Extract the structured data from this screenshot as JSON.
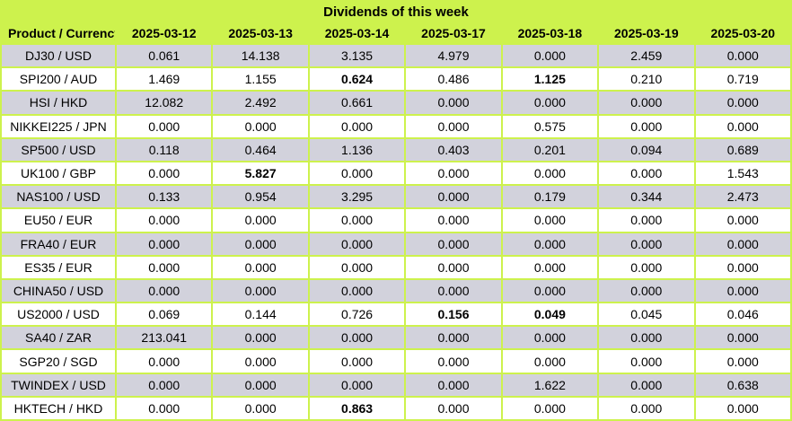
{
  "title": "Dividends of this week",
  "colors": {
    "accent_green": "#CDF24D",
    "row_gray": "#D2D2DC",
    "row_white": "#FFFFFF",
    "text": "#000000"
  },
  "chart_data": {
    "type": "table",
    "title": "Dividends of this week",
    "categories": [
      "2025-03-12",
      "2025-03-13",
      "2025-03-14",
      "2025-03-17",
      "2025-03-18",
      "2025-03-19",
      "2025-03-20"
    ],
    "series": [
      {
        "name": "DJ30 / USD",
        "values": [
          0.061,
          14.138,
          3.135,
          4.979,
          0.0,
          2.459,
          0.0
        ]
      },
      {
        "name": "SPI200 / AUD",
        "values": [
          1.469,
          1.155,
          0.624,
          0.486,
          1.125,
          0.21,
          0.719
        ]
      },
      {
        "name": "HSI / HKD",
        "values": [
          12.082,
          2.492,
          0.661,
          0.0,
          0.0,
          0.0,
          0.0
        ]
      },
      {
        "name": "NIKKEI225 / JPN",
        "values": [
          0.0,
          0.0,
          0.0,
          0.0,
          0.575,
          0.0,
          0.0
        ]
      },
      {
        "name": "SP500 / USD",
        "values": [
          0.118,
          0.464,
          1.136,
          0.403,
          0.201,
          0.094,
          0.689
        ]
      },
      {
        "name": "UK100 / GBP",
        "values": [
          0.0,
          5.827,
          0.0,
          0.0,
          0.0,
          0.0,
          1.543
        ]
      },
      {
        "name": "NAS100 / USD",
        "values": [
          0.133,
          0.954,
          3.295,
          0.0,
          0.179,
          0.344,
          2.473
        ]
      },
      {
        "name": "EU50 / EUR",
        "values": [
          0.0,
          0.0,
          0.0,
          0.0,
          0.0,
          0.0,
          0.0
        ]
      },
      {
        "name": "FRA40 / EUR",
        "values": [
          0.0,
          0.0,
          0.0,
          0.0,
          0.0,
          0.0,
          0.0
        ]
      },
      {
        "name": "ES35 / EUR",
        "values": [
          0.0,
          0.0,
          0.0,
          0.0,
          0.0,
          0.0,
          0.0
        ]
      },
      {
        "name": "CHINA50 / USD",
        "values": [
          0.0,
          0.0,
          0.0,
          0.0,
          0.0,
          0.0,
          0.0
        ]
      },
      {
        "name": "US2000 / USD",
        "values": [
          0.069,
          0.144,
          0.726,
          0.156,
          0.049,
          0.045,
          0.046
        ]
      },
      {
        "name": "SA40 / ZAR",
        "values": [
          213.041,
          0.0,
          0.0,
          0.0,
          0.0,
          0.0,
          0.0
        ]
      },
      {
        "name": "SGP20 / SGD",
        "values": [
          0.0,
          0.0,
          0.0,
          0.0,
          0.0,
          0.0,
          0.0
        ]
      },
      {
        "name": "TWINDEX / USD",
        "values": [
          0.0,
          0.0,
          0.0,
          0.0,
          1.622,
          0.0,
          0.638
        ]
      },
      {
        "name": "HKTECH / HKD",
        "values": [
          0.0,
          0.0,
          0.863,
          0.0,
          0.0,
          0.0,
          0.0
        ]
      }
    ]
  },
  "table": {
    "product_header": "Product / Currency",
    "date_headers": [
      "2025-03-12",
      "2025-03-13",
      "2025-03-14",
      "2025-03-17",
      "2025-03-18",
      "2025-03-19",
      "2025-03-20"
    ],
    "rows": [
      {
        "product": "DJ30 / USD",
        "values": [
          "0.061",
          "14.138",
          "3.135",
          "4.979",
          "0.000",
          "2.459",
          "0.000"
        ],
        "bold": []
      },
      {
        "product": "SPI200 / AUD",
        "values": [
          "1.469",
          "1.155",
          "0.624",
          "0.486",
          "1.125",
          "0.210",
          "0.719"
        ],
        "bold": [
          2,
          4
        ]
      },
      {
        "product": "HSI / HKD",
        "values": [
          "12.082",
          "2.492",
          "0.661",
          "0.000",
          "0.000",
          "0.000",
          "0.000"
        ],
        "bold": []
      },
      {
        "product": "NIKKEI225 / JPN",
        "values": [
          "0.000",
          "0.000",
          "0.000",
          "0.000",
          "0.575",
          "0.000",
          "0.000"
        ],
        "bold": []
      },
      {
        "product": "SP500 / USD",
        "values": [
          "0.118",
          "0.464",
          "1.136",
          "0.403",
          "0.201",
          "0.094",
          "0.689"
        ],
        "bold": []
      },
      {
        "product": "UK100 / GBP",
        "values": [
          "0.000",
          "5.827",
          "0.000",
          "0.000",
          "0.000",
          "0.000",
          "1.543"
        ],
        "bold": [
          1
        ]
      },
      {
        "product": "NAS100 / USD",
        "values": [
          "0.133",
          "0.954",
          "3.295",
          "0.000",
          "0.179",
          "0.344",
          "2.473"
        ],
        "bold": []
      },
      {
        "product": "EU50 / EUR",
        "values": [
          "0.000",
          "0.000",
          "0.000",
          "0.000",
          "0.000",
          "0.000",
          "0.000"
        ],
        "bold": []
      },
      {
        "product": "FRA40 / EUR",
        "values": [
          "0.000",
          "0.000",
          "0.000",
          "0.000",
          "0.000",
          "0.000",
          "0.000"
        ],
        "bold": []
      },
      {
        "product": "ES35 / EUR",
        "values": [
          "0.000",
          "0.000",
          "0.000",
          "0.000",
          "0.000",
          "0.000",
          "0.000"
        ],
        "bold": []
      },
      {
        "product": "CHINA50 / USD",
        "values": [
          "0.000",
          "0.000",
          "0.000",
          "0.000",
          "0.000",
          "0.000",
          "0.000"
        ],
        "bold": []
      },
      {
        "product": "US2000 / USD",
        "values": [
          "0.069",
          "0.144",
          "0.726",
          "0.156",
          "0.049",
          "0.045",
          "0.046"
        ],
        "bold": [
          3,
          4
        ]
      },
      {
        "product": "SA40 / ZAR",
        "values": [
          "213.041",
          "0.000",
          "0.000",
          "0.000",
          "0.000",
          "0.000",
          "0.000"
        ],
        "bold": []
      },
      {
        "product": "SGP20 / SGD",
        "values": [
          "0.000",
          "0.000",
          "0.000",
          "0.000",
          "0.000",
          "0.000",
          "0.000"
        ],
        "bold": []
      },
      {
        "product": "TWINDEX / USD",
        "values": [
          "0.000",
          "0.000",
          "0.000",
          "0.000",
          "1.622",
          "0.000",
          "0.638"
        ],
        "bold": []
      },
      {
        "product": "HKTECH / HKD",
        "values": [
          "0.000",
          "0.000",
          "0.863",
          "0.000",
          "0.000",
          "0.000",
          "0.000"
        ],
        "bold": [
          2
        ]
      }
    ]
  }
}
